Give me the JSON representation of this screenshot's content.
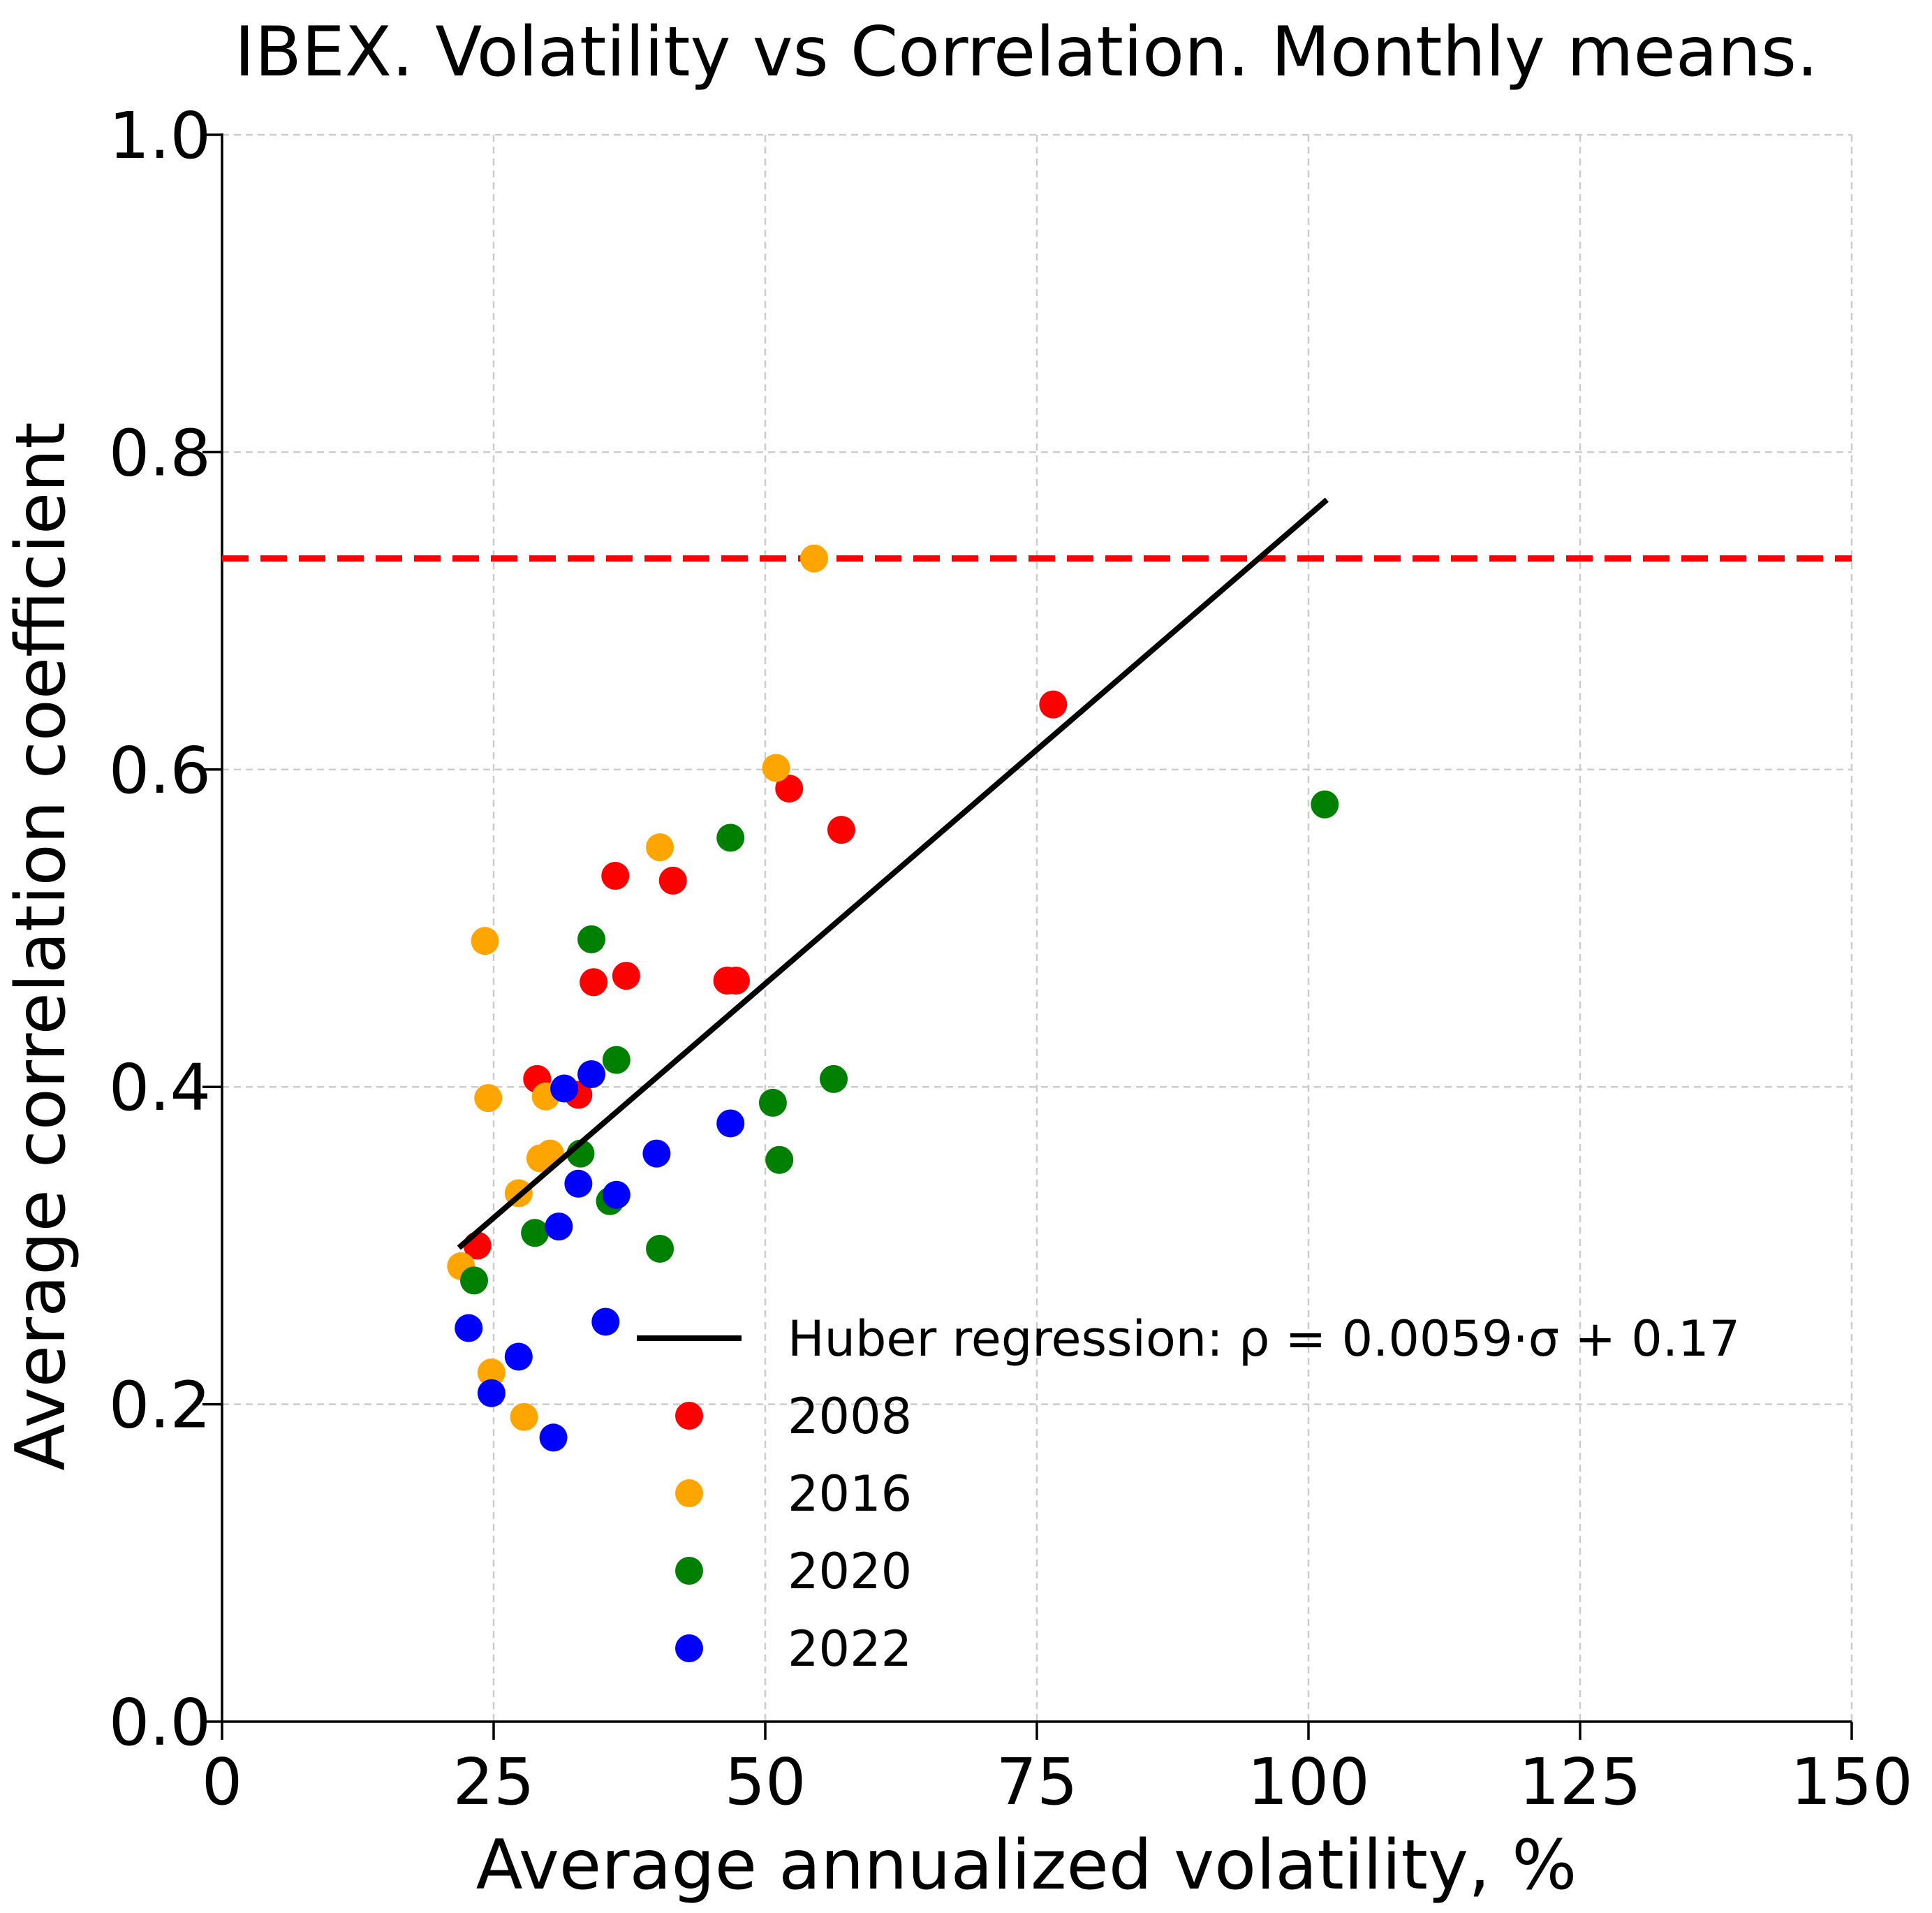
{
  "chart_data": {
    "type": "scatter",
    "title": "IBEX. Volatility vs Correlation. Monthly means.",
    "xlabel": "Average annualized volatility, %",
    "ylabel": "Average correlation coefficient",
    "xlim": [
      0,
      150
    ],
    "ylim": [
      0,
      1.0
    ],
    "xticks": [
      0,
      25,
      50,
      75,
      100,
      125,
      150
    ],
    "xtick_labels": [
      "0",
      "25",
      "50",
      "75",
      "100",
      "125",
      "150"
    ],
    "yticks": [
      0.0,
      0.2,
      0.4,
      0.6,
      0.8,
      1.0
    ],
    "ytick_labels": [
      "0.0",
      "0.2",
      "0.4",
      "0.6",
      "0.8",
      "1.0"
    ],
    "grid": true,
    "legend_position": "lower-right",
    "reference_line": {
      "y": 0.733,
      "color": "#ff0000",
      "style": "dashed"
    },
    "regression": {
      "label": "Huber regression: ρ = 0.0059·σ + 0.17",
      "slope": 0.0059,
      "intercept": 0.17,
      "x_range": [
        22,
        101.5
      ],
      "color": "#000000"
    },
    "series": [
      {
        "name": "2008",
        "color": "#ff0000",
        "points": [
          [
            23.5,
            0.3
          ],
          [
            29.0,
            0.405
          ],
          [
            32.8,
            0.395
          ],
          [
            34.2,
            0.466
          ],
          [
            36.2,
            0.533
          ],
          [
            37.2,
            0.47
          ],
          [
            41.5,
            0.53
          ],
          [
            46.5,
            0.467
          ],
          [
            47.3,
            0.467
          ],
          [
            52.2,
            0.588
          ],
          [
            57.0,
            0.562
          ],
          [
            76.5,
            0.641
          ]
        ]
      },
      {
        "name": "2016",
        "color": "#ffa500",
        "points": [
          [
            22.0,
            0.287
          ],
          [
            24.2,
            0.492
          ],
          [
            24.5,
            0.393
          ],
          [
            24.8,
            0.22
          ],
          [
            27.3,
            0.333
          ],
          [
            27.8,
            0.192
          ],
          [
            29.3,
            0.355
          ],
          [
            29.8,
            0.394
          ],
          [
            30.2,
            0.358
          ],
          [
            40.3,
            0.551
          ],
          [
            51.0,
            0.601
          ],
          [
            54.5,
            0.733
          ]
        ]
      },
      {
        "name": "2020",
        "color": "#008000",
        "points": [
          [
            23.2,
            0.278
          ],
          [
            28.8,
            0.308
          ],
          [
            33.0,
            0.358
          ],
          [
            34.0,
            0.493
          ],
          [
            35.7,
            0.328
          ],
          [
            36.3,
            0.417
          ],
          [
            40.3,
            0.298
          ],
          [
            46.8,
            0.557
          ],
          [
            50.7,
            0.39
          ],
          [
            51.3,
            0.354
          ],
          [
            56.3,
            0.405
          ],
          [
            101.5,
            0.578
          ]
        ]
      },
      {
        "name": "2022",
        "color": "#0000ff",
        "points": [
          [
            22.7,
            0.248
          ],
          [
            24.8,
            0.207
          ],
          [
            27.3,
            0.23
          ],
          [
            30.5,
            0.179
          ],
          [
            31.0,
            0.312
          ],
          [
            31.5,
            0.399
          ],
          [
            32.8,
            0.339
          ],
          [
            34.0,
            0.408
          ],
          [
            35.3,
            0.252
          ],
          [
            36.3,
            0.332
          ],
          [
            40.0,
            0.358
          ],
          [
            46.8,
            0.377
          ]
        ]
      }
    ]
  }
}
